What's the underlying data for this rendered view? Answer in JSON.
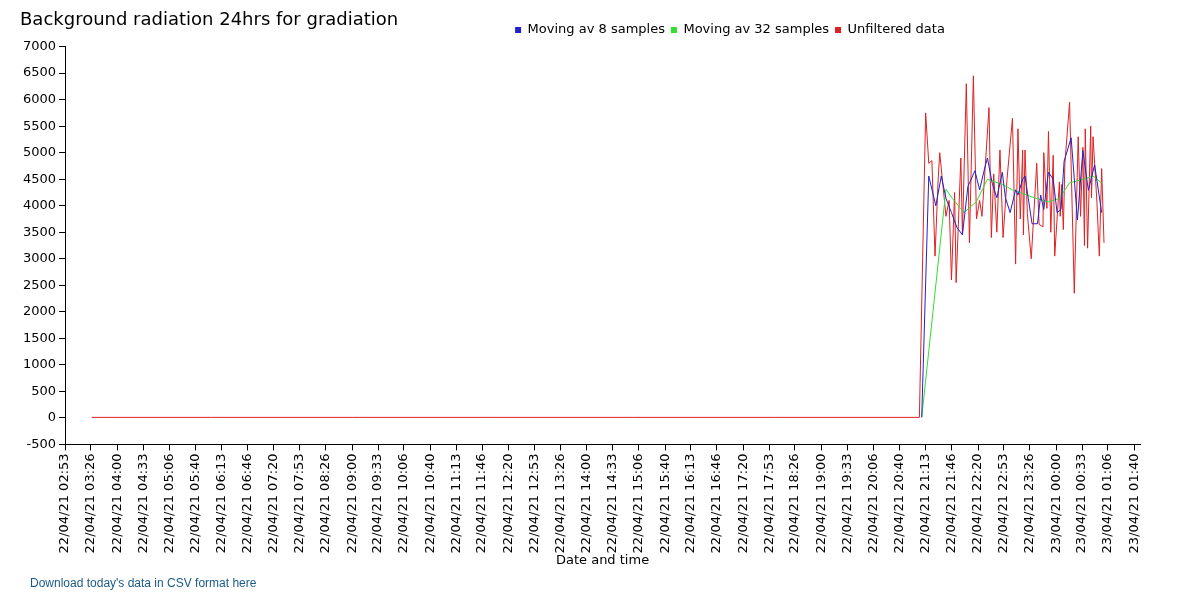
{
  "chart_data": {
    "type": "line",
    "title": "Background radiation 24hrs for gradiation",
    "xlabel": "Date and time",
    "annotations": [
      "Download today's data in CSV format here"
    ],
    "legend": "top",
    "grid": false,
    "marker": "none",
    "line_style": "solid",
    "xlim": [
      "--04-22T02:53",
      "--04-23T01:47"
    ],
    "xticks": [
      {
        "value": "--04-22T02:53",
        "label": "22/04/21 02:53"
      },
      {
        "value": "--04-22T03:26",
        "label": "22/04/21 03:26"
      },
      {
        "value": "--04-22T04:00",
        "label": "22/04/21 04:00"
      },
      {
        "value": "--04-22T04:33",
        "label": "22/04/21 04:33"
      },
      {
        "value": "--04-22T05:06",
        "label": "22/04/21 05:06"
      },
      {
        "value": "--04-22T05:40",
        "label": "22/04/21 05:40"
      },
      {
        "value": "--04-22T06:13",
        "label": "22/04/21 06:13"
      },
      {
        "value": "--04-22T06:46",
        "label": "22/04/21 06:46"
      },
      {
        "value": "--04-22T07:20",
        "label": "22/04/21 07:20"
      },
      {
        "value": "--04-22T07:53",
        "label": "22/04/21 07:53"
      },
      {
        "value": "--04-22T08:26",
        "label": "22/04/21 08:26"
      },
      {
        "value": "--04-22T09:00",
        "label": "22/04/21 09:00"
      },
      {
        "value": "--04-22T09:33",
        "label": "22/04/21 09:33"
      },
      {
        "value": "--04-22T10:06",
        "label": "22/04/21 10:06"
      },
      {
        "value": "--04-22T10:40",
        "label": "22/04/21 10:40"
      },
      {
        "value": "--04-22T11:13",
        "label": "22/04/21 11:13"
      },
      {
        "value": "--04-22T11:46",
        "label": "22/04/21 11:46"
      },
      {
        "value": "--04-22T12:20",
        "label": "22/04/21 12:20"
      },
      {
        "value": "--04-22T12:53",
        "label": "22/04/21 12:53"
      },
      {
        "value": "--04-22T13:26",
        "label": "22/04/21 13:26"
      },
      {
        "value": "--04-22T14:00",
        "label": "22/04/21 14:00"
      },
      {
        "value": "--04-22T14:33",
        "label": "22/04/21 14:33"
      },
      {
        "value": "--04-22T15:06",
        "label": "22/04/21 15:06"
      },
      {
        "value": "--04-22T15:40",
        "label": "22/04/21 15:40"
      },
      {
        "value": "--04-22T16:13",
        "label": "22/04/21 16:13"
      },
      {
        "value": "--04-22T16:46",
        "label": "22/04/21 16:46"
      },
      {
        "value": "--04-22T17:20",
        "label": "22/04/21 17:20"
      },
      {
        "value": "--04-22T17:53",
        "label": "22/04/21 17:53"
      },
      {
        "value": "--04-22T18:26",
        "label": "22/04/21 18:26"
      },
      {
        "value": "--04-22T19:00",
        "label": "22/04/21 19:00"
      },
      {
        "value": "--04-22T19:33",
        "label": "22/04/21 19:33"
      },
      {
        "value": "--04-22T20:06",
        "label": "22/04/21 20:06"
      },
      {
        "value": "--04-22T20:40",
        "label": "22/04/21 20:40"
      },
      {
        "value": "--04-22T21:13",
        "label": "22/04/21 21:13"
      },
      {
        "value": "--04-22T21:46",
        "label": "22/04/21 21:46"
      },
      {
        "value": "--04-22T22:20",
        "label": "22/04/21 22:20"
      },
      {
        "value": "--04-22T22:53",
        "label": "22/04/21 22:53"
      },
      {
        "value": "--04-22T23:26",
        "label": "22/04/21 23:26"
      },
      {
        "value": "--04-23T00:00",
        "label": "23/04/21 00:00"
      },
      {
        "value": "--04-23T00:33",
        "label": "23/04/21 00:33"
      },
      {
        "value": "--04-23T01:06",
        "label": "23/04/21 01:06"
      },
      {
        "value": "--04-23T01:40",
        "label": "23/04/21 01:40"
      }
    ],
    "ylim": [
      -500,
      7000
    ],
    "yticks": [
      -500,
      0,
      500,
      1000,
      1500,
      2000,
      2500,
      3000,
      3500,
      4000,
      4500,
      5000,
      5500,
      6000,
      6500,
      7000
    ],
    "series": [
      {
        "name": "Moving av 8 samples",
        "color": "#2222cc",
        "x": [
          "--04-22T21:08",
          "--04-22T21:17",
          "--04-22T21:26",
          "--04-22T21:33",
          "--04-22T21:39",
          "--04-22T21:46",
          "--04-22T21:53",
          "--04-22T22:00",
          "--04-22T22:07",
          "--04-22T22:16",
          "--04-22T22:22",
          "--04-22T22:29",
          "--04-22T22:32",
          "--04-22T22:38",
          "--04-22T22:44",
          "--04-22T22:51",
          "--04-22T22:55",
          "--04-22T23:01",
          "--04-22T23:08",
          "--04-22T23:11",
          "--04-22T23:17",
          "--04-22T23:20",
          "--04-22T23:29",
          "--04-22T23:36",
          "--04-22T23:40",
          "--04-22T23:44",
          "--04-22T23:50",
          "--04-22T23:56",
          "--04-23T00:01",
          "--04-23T00:06",
          "--04-23T00:10",
          "--04-23T00:19",
          "--04-23T00:27",
          "--04-23T00:34",
          "--04-23T00:41",
          "--04-23T00:49",
          "--04-23T00:58"
        ],
        "values": [
          10,
          4560,
          4000,
          4560,
          4140,
          3870,
          3590,
          3450,
          4360,
          4660,
          4300,
          4740,
          4900,
          4430,
          4150,
          4630,
          4150,
          3870,
          4300,
          4200,
          4500,
          4560,
          3660,
          3660,
          4200,
          3930,
          4630,
          4500,
          3870,
          3930,
          4840,
          5280,
          3730,
          5040,
          4290,
          4770,
          3870
        ]
      },
      {
        "name": "Moving av 32 samples",
        "color": "#33dd33",
        "x": [
          "--04-22T21:08",
          "--04-22T21:39",
          "--04-22T21:47",
          "--04-22T22:02",
          "--04-22T22:18",
          "--04-22T22:32",
          "--04-22T22:51",
          "--04-22T23:04",
          "--04-22T23:17",
          "--04-22T23:34",
          "--04-22T23:50",
          "--04-23T00:04",
          "--04-23T00:17",
          "--04-23T00:35",
          "--04-23T00:47",
          "--04-23T00:58"
        ],
        "values": [
          10,
          4310,
          4140,
          3870,
          4080,
          4500,
          4400,
          4300,
          4230,
          4140,
          4070,
          4140,
          4430,
          4500,
          4560,
          4430
        ]
      },
      {
        "name": "Unfiltered data",
        "color": "#dd2222",
        "x": [
          "--04-22T03:27",
          "--04-22T06:00",
          "--04-22T09:00",
          "--04-22T12:00",
          "--04-22T15:00",
          "--04-22T18:00",
          "--04-22T21:05",
          "--04-22T21:13",
          "--04-22T21:17",
          "--04-22T21:21",
          "--04-22T21:25",
          "--04-22T21:29",
          "--04-22T21:31",
          "--04-22T21:35",
          "--04-22T21:39",
          "--04-22T21:43",
          "--04-22T21:46",
          "--04-22T21:50",
          "--04-22T21:52",
          "--04-22T21:58",
          "--04-22T22:00",
          "--04-22T22:05",
          "--04-22T22:09",
          "--04-22T22:14",
          "--04-22T22:18",
          "--04-22T22:22",
          "--04-22T22:25",
          "--04-22T22:29",
          "--04-22T22:34",
          "--04-22T22:37",
          "--04-22T22:40",
          "--04-22T22:44",
          "--04-22T22:48",
          "--04-22T22:52",
          "--04-22T22:57",
          "--04-22T23:04",
          "--04-22T23:08",
          "--04-22T23:11",
          "--04-22T23:14",
          "--04-22T23:17",
          "--04-22T23:18",
          "--04-22T23:20",
          "--04-22T23:23",
          "--04-22T23:28",
          "--04-22T23:35",
          "--04-22T23:38",
          "--04-22T23:43",
          "--04-22T23:44",
          "--04-22T23:48",
          "--04-22T23:50",
          "--04-22T23:53",
          "--04-22T23:56",
          "--04-22T23:58",
          "--04-23T00:04",
          "--04-23T00:05",
          "--04-23T00:07",
          "--04-23T00:09",
          "--04-23T00:11",
          "--04-23T00:17",
          "--04-23T00:23",
          "--04-23T00:28",
          "--04-23T00:31",
          "--04-23T00:34",
          "--04-23T00:36",
          "--04-23T00:37",
          "--04-23T00:40",
          "--04-23T00:44",
          "--04-23T00:45",
          "--04-23T00:47",
          "--04-23T00:52",
          "--04-23T00:55",
          "--04-23T00:58",
          "--04-23T01:01"
        ],
        "values": [
          10,
          10,
          10,
          10,
          10,
          10,
          10,
          5750,
          4800,
          4850,
          3050,
          4500,
          5000,
          4400,
          3800,
          4100,
          2600,
          4250,
          2550,
          4900,
          3450,
          6300,
          3300,
          6450,
          3750,
          4100,
          3800,
          4700,
          5850,
          3400,
          4600,
          3500,
          5050,
          3400,
          4500,
          5650,
          2900,
          5450,
          3750,
          5050,
          3450,
          5050,
          3850,
          3000,
          4800,
          3650,
          3600,
          5000,
          3950,
          5400,
          3500,
          4950,
          3050,
          4450,
          3800,
          4400,
          3550,
          4800,
          5950,
          2350,
          5300,
          3800,
          5100,
          3250,
          5450,
          3200,
          5500,
          4150,
          5300,
          4050,
          3050,
          4700,
          3300
        ]
      }
    ]
  }
}
